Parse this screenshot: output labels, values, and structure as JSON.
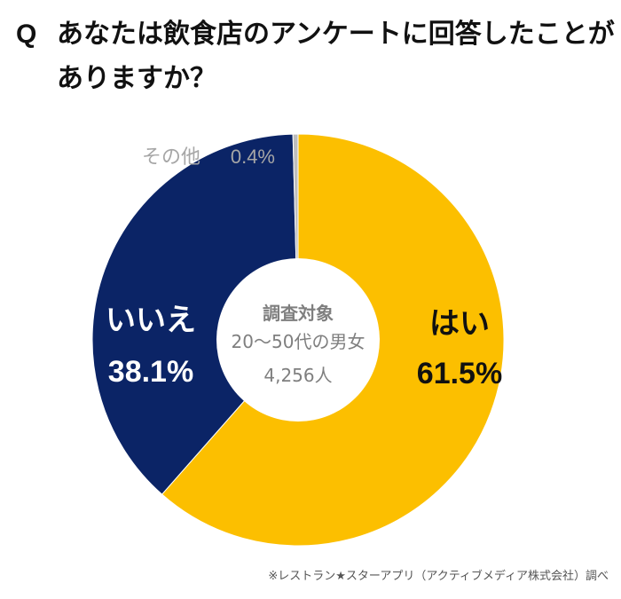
{
  "question": {
    "marker": "Q",
    "line1": "あなたは飲食店のアンケートに回答したことが",
    "line2": "ありますか？"
  },
  "chart_data": {
    "type": "pie",
    "style": "donut",
    "title": "あなたは飲食店のアンケートに回答したことがありますか？",
    "slices": [
      {
        "key": "yes",
        "label": "はい",
        "value": 61.5,
        "display": "61.5%",
        "color": "#FCBF00"
      },
      {
        "key": "no",
        "label": "いいえ",
        "value": 38.1,
        "display": "38.1%",
        "color": "#0B2466"
      },
      {
        "key": "other",
        "label": "その他",
        "value": 0.4,
        "display": "0.4%",
        "color": "#BDBDBD"
      }
    ],
    "center_text": {
      "line1": "調査対象",
      "line2": "20～50代の男女",
      "line3": "4,256人"
    }
  },
  "footer": {
    "source": "※レストラン★スターアプリ（アクティブメディア株式会社）調べ"
  }
}
